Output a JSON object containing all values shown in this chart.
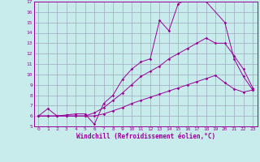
{
  "xlabel": "Windchill (Refroidissement éolien,°C)",
  "xlim": [
    -0.5,
    23.5
  ],
  "ylim": [
    5,
    17
  ],
  "xticks": [
    0,
    1,
    2,
    3,
    4,
    5,
    6,
    7,
    8,
    9,
    10,
    11,
    12,
    13,
    14,
    15,
    16,
    17,
    18,
    19,
    20,
    21,
    22,
    23
  ],
  "yticks": [
    5,
    6,
    7,
    8,
    9,
    10,
    11,
    12,
    13,
    14,
    15,
    16,
    17
  ],
  "bg_color": "#c8ecec",
  "line_color": "#990099",
  "grid_color": "#a0a8c0",
  "line1_x": [
    0,
    1,
    2,
    3,
    4,
    5,
    6,
    7,
    8,
    9,
    10,
    11,
    12,
    13,
    14,
    15,
    16,
    17,
    18,
    20,
    21,
    22,
    23
  ],
  "line1_y": [
    6.0,
    6.7,
    6.0,
    6.1,
    6.2,
    6.2,
    5.2,
    7.2,
    8.0,
    9.5,
    10.5,
    11.2,
    11.5,
    15.2,
    14.2,
    16.8,
    17.2,
    17.2,
    17.0,
    15.0,
    11.5,
    9.8,
    8.5
  ],
  "line2_x": [
    0,
    1,
    2,
    3,
    4,
    5,
    6,
    7,
    8,
    9,
    10,
    11,
    12,
    13,
    14,
    15,
    16,
    17,
    18,
    19,
    20,
    21,
    22,
    23
  ],
  "line2_y": [
    6.0,
    6.0,
    6.0,
    6.0,
    6.0,
    6.0,
    6.3,
    6.8,
    7.5,
    8.2,
    9.0,
    9.8,
    10.3,
    10.8,
    11.5,
    12.0,
    12.5,
    13.0,
    13.5,
    13.0,
    13.0,
    11.8,
    10.5,
    8.7
  ],
  "line3_x": [
    0,
    1,
    2,
    3,
    4,
    5,
    6,
    7,
    8,
    9,
    10,
    11,
    12,
    13,
    14,
    15,
    16,
    17,
    18,
    19,
    20,
    21,
    22,
    23
  ],
  "line3_y": [
    6.0,
    6.0,
    6.0,
    6.0,
    6.0,
    6.0,
    6.0,
    6.2,
    6.5,
    6.8,
    7.2,
    7.5,
    7.8,
    8.1,
    8.4,
    8.7,
    9.0,
    9.3,
    9.6,
    9.9,
    9.2,
    8.6,
    8.3,
    8.5
  ]
}
